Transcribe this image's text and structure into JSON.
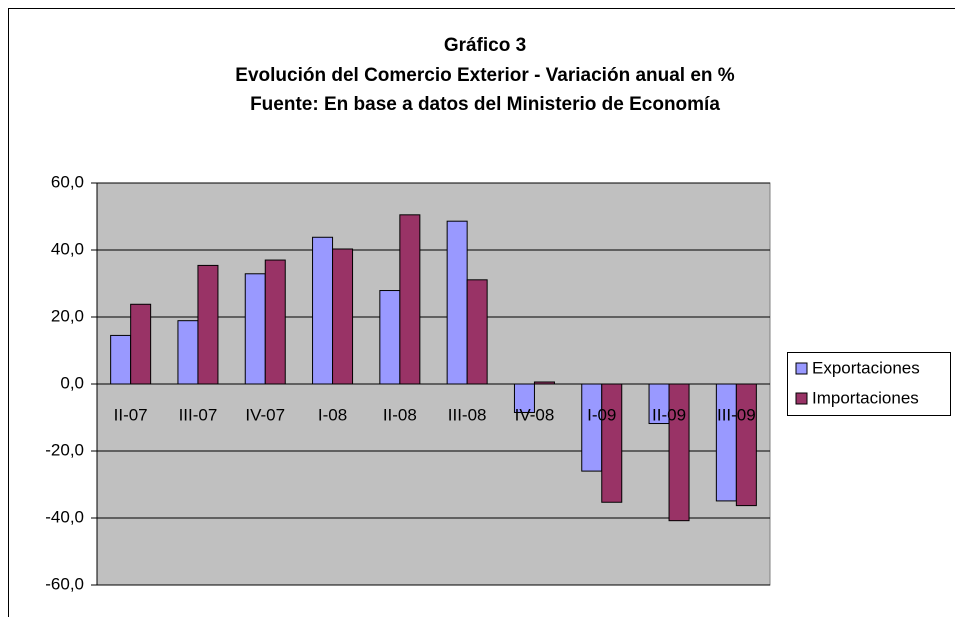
{
  "chart_data": {
    "type": "bar",
    "title": "Gráfico 3",
    "subtitle": [
      "Evolución del Comercio Exterior - Variación anual en %",
      "Fuente: En base a datos del Ministerio de Economía"
    ],
    "categories": [
      "II-07",
      "III-07",
      "IV-07",
      "I-08",
      "II-08",
      "III-08",
      "IV-08",
      "I-09",
      "II-09",
      "III-09"
    ],
    "series": [
      {
        "name": "Exportaciones",
        "color": "#9999ff",
        "values": [
          14.5,
          18.9,
          32.9,
          43.8,
          27.9,
          48.6,
          -8.5,
          -26.0,
          -11.8,
          -34.9
        ]
      },
      {
        "name": "Importaciones",
        "color": "#993366",
        "values": [
          23.8,
          35.4,
          37.0,
          40.3,
          50.5,
          31.1,
          0.6,
          -35.3,
          -40.8,
          -36.3
        ]
      }
    ],
    "ylim": [
      -60,
      60
    ],
    "yticks": [
      {
        "value": -60,
        "label": "-60,0"
      },
      {
        "value": -40,
        "label": "-40,0"
      },
      {
        "value": -20,
        "label": "-20,0"
      },
      {
        "value": 0,
        "label": "0,0"
      },
      {
        "value": 20,
        "label": "20,0"
      },
      {
        "value": 40,
        "label": "40,0"
      },
      {
        "value": 60,
        "label": "60,0"
      }
    ],
    "grid": true,
    "legend": "right"
  }
}
